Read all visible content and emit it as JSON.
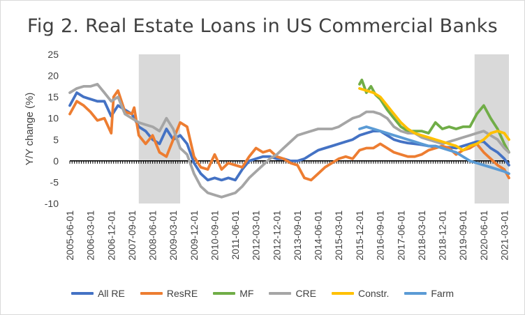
{
  "chart_data": {
    "type": "line",
    "title": "Fig 2. Real Estate Loans in US Commercial Banks",
    "ylabel": "Y/Y change (%)",
    "xlabel": "",
    "ylim": [
      -10,
      25
    ],
    "yticks": [
      -10,
      -5,
      0,
      5,
      10,
      15,
      20,
      25
    ],
    "xlim": [
      "2005-06-01",
      "2021-05-01"
    ],
    "xticks": [
      "2005-06-01",
      "2006-03-01",
      "2006-12-01",
      "2007-09-01",
      "2008-06-01",
      "2009-03-01",
      "2009-12-01",
      "2010-09-01",
      "2011-06-01",
      "2012-03-01",
      "2012-12-01",
      "2013-09-01",
      "2014-06-01",
      "2015-03-01",
      "2015-12-01",
      "2016-09-01",
      "2017-06-01",
      "2018-03-01",
      "2018-12-01",
      "2019-09-01",
      "2020-06-01",
      "2021-03-01"
    ],
    "recessions": [
      [
        "2007-12-01",
        "2009-06-01"
      ],
      [
        "2020-02-01",
        "2021-05-01"
      ]
    ],
    "grid": false,
    "legend_position": "bottom",
    "series": [
      {
        "name": "All RE",
        "color": "#4472C4",
        "points": [
          [
            "2005-06-01",
            13
          ],
          [
            "2005-09-01",
            16
          ],
          [
            "2005-12-01",
            15
          ],
          [
            "2006-03-01",
            14.5
          ],
          [
            "2006-06-01",
            14
          ],
          [
            "2006-09-01",
            14
          ],
          [
            "2006-12-01",
            10.5
          ],
          [
            "2007-03-01",
            13
          ],
          [
            "2007-06-01",
            12
          ],
          [
            "2007-09-01",
            11
          ],
          [
            "2007-12-01",
            8
          ],
          [
            "2008-03-01",
            7
          ],
          [
            "2008-06-01",
            5
          ],
          [
            "2008-09-01",
            4
          ],
          [
            "2008-12-01",
            7.5
          ],
          [
            "2009-03-01",
            5
          ],
          [
            "2009-06-01",
            6
          ],
          [
            "2009-09-01",
            4
          ],
          [
            "2009-12-01",
            -0.5
          ],
          [
            "2010-03-01",
            -3
          ],
          [
            "2010-06-01",
            -4.5
          ],
          [
            "2010-09-01",
            -4
          ],
          [
            "2010-12-01",
            -4.5
          ],
          [
            "2011-03-01",
            -4
          ],
          [
            "2011-06-01",
            -4.5
          ],
          [
            "2011-09-01",
            -2
          ],
          [
            "2011-12-01",
            0
          ],
          [
            "2012-03-01",
            0.5
          ],
          [
            "2012-06-01",
            1
          ],
          [
            "2012-09-01",
            1
          ],
          [
            "2012-12-01",
            0.5
          ],
          [
            "2013-03-01",
            0.5
          ],
          [
            "2013-06-01",
            0
          ],
          [
            "2013-09-01",
            0
          ],
          [
            "2013-12-01",
            0.5
          ],
          [
            "2014-03-01",
            1.5
          ],
          [
            "2014-06-01",
            2.5
          ],
          [
            "2014-09-01",
            3
          ],
          [
            "2014-12-01",
            3.5
          ],
          [
            "2015-03-01",
            4
          ],
          [
            "2015-06-01",
            4.5
          ],
          [
            "2015-09-01",
            5
          ],
          [
            "2015-12-01",
            6
          ],
          [
            "2016-03-01",
            6.5
          ],
          [
            "2016-06-01",
            7
          ],
          [
            "2016-09-01",
            7
          ],
          [
            "2016-12-01",
            6
          ],
          [
            "2017-03-01",
            5
          ],
          [
            "2017-06-01",
            4.5
          ],
          [
            "2017-09-01",
            4.2
          ],
          [
            "2017-12-01",
            4
          ],
          [
            "2018-03-01",
            3.8
          ],
          [
            "2018-06-01",
            3.5
          ],
          [
            "2018-09-01",
            3.3
          ],
          [
            "2018-12-01",
            3.2
          ],
          [
            "2019-03-01",
            3.2
          ],
          [
            "2019-06-01",
            3
          ],
          [
            "2019-09-01",
            3.5
          ],
          [
            "2019-12-01",
            4
          ],
          [
            "2020-03-01",
            4.5
          ],
          [
            "2020-06-01",
            4.5
          ],
          [
            "2020-09-01",
            3
          ],
          [
            "2020-12-01",
            2
          ],
          [
            "2021-03-01",
            0.5
          ],
          [
            "2021-05-01",
            -1
          ]
        ]
      },
      {
        "name": "ResRE",
        "color": "#ED7D31",
        "points": [
          [
            "2005-06-01",
            11
          ],
          [
            "2005-09-01",
            14
          ],
          [
            "2005-12-01",
            13
          ],
          [
            "2006-03-01",
            11.5
          ],
          [
            "2006-06-01",
            9.5
          ],
          [
            "2006-09-01",
            10
          ],
          [
            "2006-12-01",
            6.5
          ],
          [
            "2007-01-01",
            15
          ],
          [
            "2007-03-01",
            16.5
          ],
          [
            "2007-06-01",
            11.5
          ],
          [
            "2007-09-01",
            11
          ],
          [
            "2007-10-01",
            12.5
          ],
          [
            "2007-12-01",
            6
          ],
          [
            "2008-03-01",
            4
          ],
          [
            "2008-06-01",
            6
          ],
          [
            "2008-09-01",
            2
          ],
          [
            "2008-12-01",
            1
          ],
          [
            "2009-03-01",
            5
          ],
          [
            "2009-06-01",
            9
          ],
          [
            "2009-09-01",
            8
          ],
          [
            "2009-12-01",
            1
          ],
          [
            "2010-03-01",
            -1.5
          ],
          [
            "2010-06-01",
            -2
          ],
          [
            "2010-09-01",
            1.5
          ],
          [
            "2010-12-01",
            -2
          ],
          [
            "2011-03-01",
            -0.5
          ],
          [
            "2011-06-01",
            -1
          ],
          [
            "2011-09-01",
            -1.5
          ],
          [
            "2011-12-01",
            1
          ],
          [
            "2012-03-01",
            3
          ],
          [
            "2012-06-01",
            2
          ],
          [
            "2012-09-01",
            2.5
          ],
          [
            "2012-12-01",
            1
          ],
          [
            "2013-03-01",
            0.5
          ],
          [
            "2013-06-01",
            -0.5
          ],
          [
            "2013-09-01",
            -1
          ],
          [
            "2013-12-01",
            -4
          ],
          [
            "2014-03-01",
            -4.5
          ],
          [
            "2014-06-01",
            -3
          ],
          [
            "2014-09-01",
            -1.5
          ],
          [
            "2014-12-01",
            -0.5
          ],
          [
            "2015-03-01",
            0.5
          ],
          [
            "2015-06-01",
            1
          ],
          [
            "2015-09-01",
            0.5
          ],
          [
            "2015-12-01",
            2.5
          ],
          [
            "2016-03-01",
            3
          ],
          [
            "2016-06-01",
            3
          ],
          [
            "2016-09-01",
            4
          ],
          [
            "2016-12-01",
            3
          ],
          [
            "2017-03-01",
            2
          ],
          [
            "2017-06-01",
            1.5
          ],
          [
            "2017-09-01",
            1
          ],
          [
            "2017-12-01",
            1
          ],
          [
            "2018-03-01",
            1.5
          ],
          [
            "2018-06-01",
            2.5
          ],
          [
            "2018-09-01",
            3
          ],
          [
            "2018-12-01",
            3.5
          ],
          [
            "2019-03-01",
            3
          ],
          [
            "2019-06-01",
            1.5
          ],
          [
            "2019-09-01",
            2.5
          ],
          [
            "2019-12-01",
            3
          ],
          [
            "2020-03-01",
            4
          ],
          [
            "2020-06-01",
            2
          ],
          [
            "2020-09-01",
            0.5
          ],
          [
            "2020-12-01",
            -1
          ],
          [
            "2021-03-01",
            -2
          ],
          [
            "2021-05-01",
            -4
          ]
        ]
      },
      {
        "name": "MF",
        "color": "#70AD47",
        "points": [
          [
            "2015-12-01",
            18
          ],
          [
            "2016-01-01",
            19
          ],
          [
            "2016-03-01",
            16
          ],
          [
            "2016-05-01",
            17.5
          ],
          [
            "2016-07-01",
            15.5
          ],
          [
            "2016-09-01",
            14.5
          ],
          [
            "2016-12-01",
            12
          ],
          [
            "2017-03-01",
            10
          ],
          [
            "2017-06-01",
            8
          ],
          [
            "2017-09-01",
            7
          ],
          [
            "2017-12-01",
            7
          ],
          [
            "2018-03-01",
            7
          ],
          [
            "2018-06-01",
            6.5
          ],
          [
            "2018-09-01",
            9
          ],
          [
            "2018-12-01",
            7.5
          ],
          [
            "2019-03-01",
            8
          ],
          [
            "2019-06-01",
            7.5
          ],
          [
            "2019-09-01",
            8
          ],
          [
            "2019-12-01",
            8
          ],
          [
            "2020-03-01",
            11
          ],
          [
            "2020-06-01",
            13
          ],
          [
            "2020-09-01",
            10
          ],
          [
            "2020-12-01",
            7.5
          ],
          [
            "2021-03-01",
            4
          ],
          [
            "2021-05-01",
            2
          ]
        ]
      },
      {
        "name": "CRE",
        "color": "#A5A5A5",
        "points": [
          [
            "2005-06-01",
            16
          ],
          [
            "2005-09-01",
            17
          ],
          [
            "2005-12-01",
            17.5
          ],
          [
            "2006-03-01",
            17.5
          ],
          [
            "2006-06-01",
            18
          ],
          [
            "2006-09-01",
            16
          ],
          [
            "2006-12-01",
            14
          ],
          [
            "2007-03-01",
            15
          ],
          [
            "2007-06-01",
            11
          ],
          [
            "2007-09-01",
            10
          ],
          [
            "2007-12-01",
            9
          ],
          [
            "2008-03-01",
            8.5
          ],
          [
            "2008-06-01",
            8
          ],
          [
            "2008-09-01",
            7
          ],
          [
            "2008-12-01",
            10
          ],
          [
            "2009-03-01",
            7.5
          ],
          [
            "2009-06-01",
            3
          ],
          [
            "2009-09-01",
            1.5
          ],
          [
            "2009-12-01",
            -3
          ],
          [
            "2010-03-01",
            -6
          ],
          [
            "2010-06-01",
            -7.5
          ],
          [
            "2010-09-01",
            -8
          ],
          [
            "2010-12-01",
            -8.5
          ],
          [
            "2011-03-01",
            -8
          ],
          [
            "2011-06-01",
            -7.5
          ],
          [
            "2011-09-01",
            -6
          ],
          [
            "2011-12-01",
            -4
          ],
          [
            "2012-03-01",
            -2.5
          ],
          [
            "2012-06-01",
            -1
          ],
          [
            "2012-09-01",
            0.5
          ],
          [
            "2012-12-01",
            1.5
          ],
          [
            "2013-03-01",
            3
          ],
          [
            "2013-06-01",
            4.5
          ],
          [
            "2013-09-01",
            6
          ],
          [
            "2013-12-01",
            6.5
          ],
          [
            "2014-03-01",
            7
          ],
          [
            "2014-06-01",
            7.5
          ],
          [
            "2014-09-01",
            7.5
          ],
          [
            "2014-12-01",
            7.5
          ],
          [
            "2015-03-01",
            8
          ],
          [
            "2015-06-01",
            9
          ],
          [
            "2015-09-01",
            10
          ],
          [
            "2015-12-01",
            10.5
          ],
          [
            "2016-03-01",
            11.5
          ],
          [
            "2016-06-01",
            11.5
          ],
          [
            "2016-09-01",
            11
          ],
          [
            "2016-12-01",
            10
          ],
          [
            "2017-03-01",
            8
          ],
          [
            "2017-06-01",
            7
          ],
          [
            "2017-09-01",
            6.5
          ],
          [
            "2017-12-01",
            6.5
          ],
          [
            "2018-03-01",
            5.5
          ],
          [
            "2018-06-01",
            5
          ],
          [
            "2018-09-01",
            4.5
          ],
          [
            "2018-12-01",
            4
          ],
          [
            "2019-03-01",
            4.5
          ],
          [
            "2019-06-01",
            5
          ],
          [
            "2019-09-01",
            5.5
          ],
          [
            "2019-12-01",
            6
          ],
          [
            "2020-03-01",
            6.5
          ],
          [
            "2020-06-01",
            7
          ],
          [
            "2020-09-01",
            6
          ],
          [
            "2020-12-01",
            5
          ],
          [
            "2021-03-01",
            3
          ],
          [
            "2021-05-01",
            2
          ]
        ]
      },
      {
        "name": "Constr.",
        "color": "#FFC000",
        "points": [
          [
            "2015-12-01",
            17
          ],
          [
            "2016-03-01",
            16.5
          ],
          [
            "2016-06-01",
            16
          ],
          [
            "2016-09-01",
            15
          ],
          [
            "2016-12-01",
            13
          ],
          [
            "2017-03-01",
            11
          ],
          [
            "2017-06-01",
            9
          ],
          [
            "2017-09-01",
            7.5
          ],
          [
            "2017-12-01",
            6.5
          ],
          [
            "2018-03-01",
            6
          ],
          [
            "2018-06-01",
            5.5
          ],
          [
            "2018-09-01",
            5
          ],
          [
            "2018-12-01",
            4.5
          ],
          [
            "2019-03-01",
            4
          ],
          [
            "2019-06-01",
            3.5
          ],
          [
            "2019-09-01",
            2.5
          ],
          [
            "2019-12-01",
            3.5
          ],
          [
            "2020-03-01",
            4
          ],
          [
            "2020-06-01",
            5
          ],
          [
            "2020-09-01",
            6.5
          ],
          [
            "2020-12-01",
            7
          ],
          [
            "2021-03-01",
            6.5
          ],
          [
            "2021-05-01",
            5
          ]
        ]
      },
      {
        "name": "Farm",
        "color": "#5B9BD5",
        "points": [
          [
            "2015-12-01",
            7.5
          ],
          [
            "2016-03-01",
            8
          ],
          [
            "2016-06-01",
            7.5
          ],
          [
            "2016-09-01",
            7
          ],
          [
            "2016-12-01",
            6.5
          ],
          [
            "2017-03-01",
            6
          ],
          [
            "2017-06-01",
            5.5
          ],
          [
            "2017-09-01",
            5
          ],
          [
            "2017-12-01",
            4.5
          ],
          [
            "2018-03-01",
            4
          ],
          [
            "2018-06-01",
            3.5
          ],
          [
            "2018-09-01",
            3.5
          ],
          [
            "2018-12-01",
            3
          ],
          [
            "2019-03-01",
            2.5
          ],
          [
            "2019-06-01",
            2
          ],
          [
            "2019-09-01",
            1
          ],
          [
            "2019-12-01",
            0
          ],
          [
            "2020-03-01",
            -0.5
          ],
          [
            "2020-06-01",
            -1
          ],
          [
            "2020-09-01",
            -1.5
          ],
          [
            "2020-12-01",
            -2
          ],
          [
            "2021-03-01",
            -2.5
          ],
          [
            "2021-05-01",
            -3
          ]
        ]
      }
    ]
  }
}
